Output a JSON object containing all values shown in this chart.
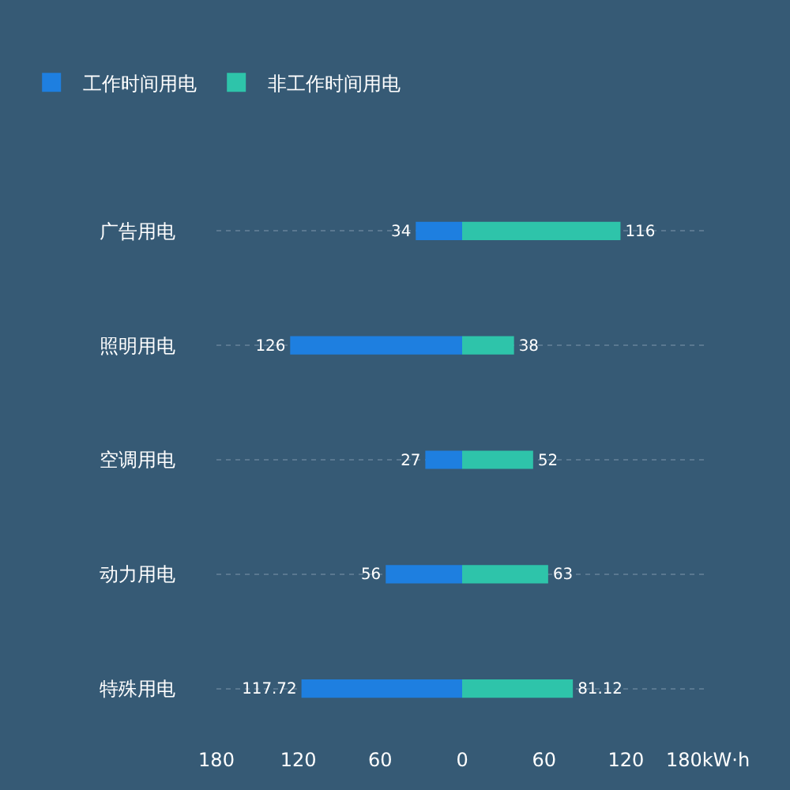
{
  "chart_data": [
    {
      "type": "bar",
      "orientation": "horizontal",
      "categories": [
        "广告用电",
        "照明用电",
        "空调用电",
        "动力用电",
        "特殊用电"
      ],
      "series": [
        {
          "name": "工作时间用电",
          "color": "#1e7fe0",
          "values": [
            34,
            126,
            27,
            56,
            117.72
          ]
        }
      ],
      "data_labels": true,
      "xlim": [
        180,
        0
      ],
      "xticks": [
        180,
        120,
        60,
        0
      ],
      "grid": "y",
      "legend": "top left"
    },
    {
      "type": "bar",
      "orientation": "horizontal",
      "categories": [
        "广告用电",
        "照明用电",
        "空调用电",
        "动力用电",
        "特殊用电"
      ],
      "series": [
        {
          "name": "非工作时间用电",
          "color": "#2ec4aa",
          "values": [
            116,
            38,
            52,
            63,
            81.12
          ]
        }
      ],
      "data_labels": true,
      "xlim": [
        0,
        180
      ],
      "xticks": [
        60,
        120,
        {
          "value": 180,
          "label": "180kW·h"
        }
      ],
      "grid": "y",
      "legend": "top left",
      "tick_labels": "x"
    }
  ]
}
